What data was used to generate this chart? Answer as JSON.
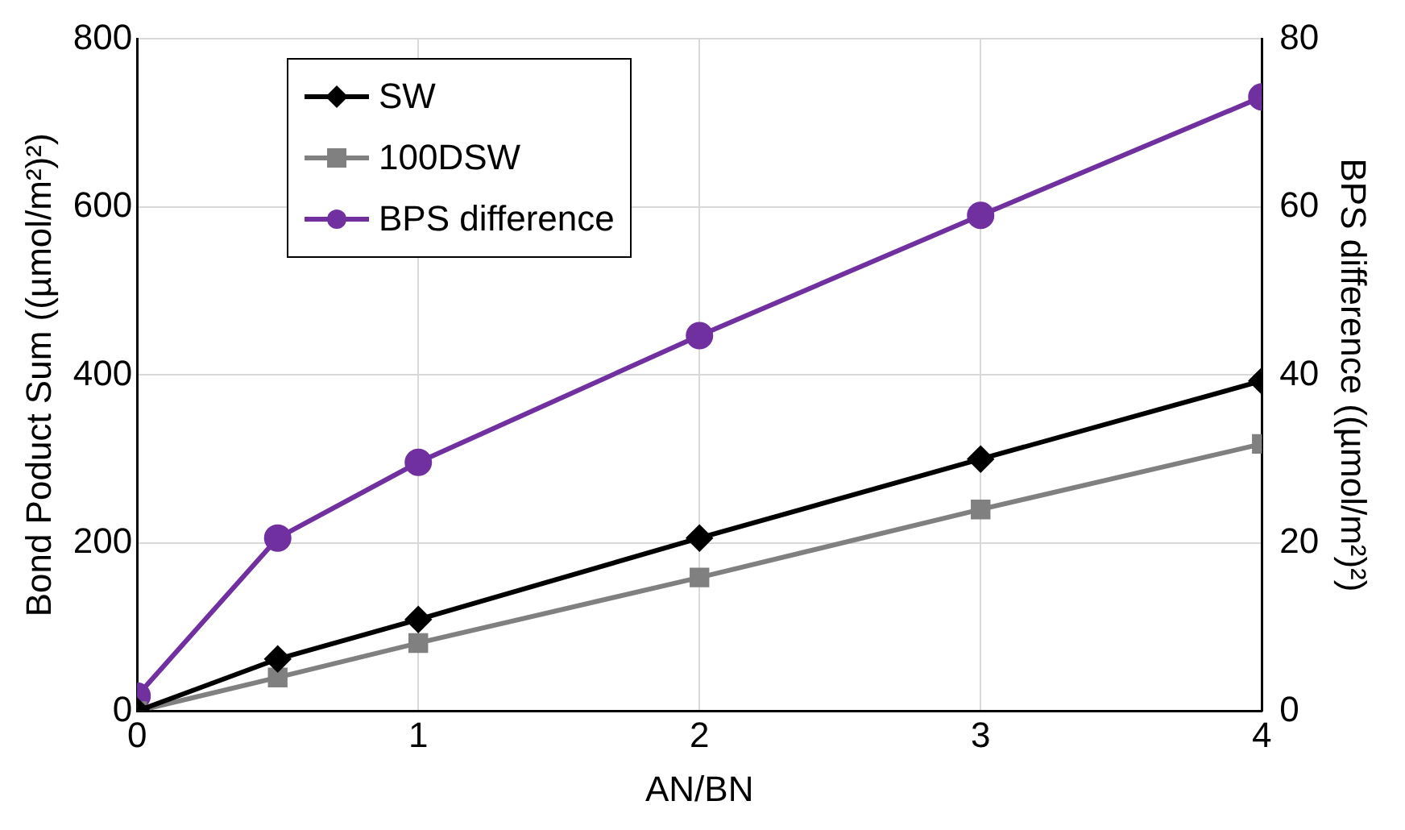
{
  "chart_data": {
    "type": "line",
    "xlabel": "AN/BN",
    "ylabel": "Bond Poduct Sum ((µmol/m²)²)",
    "y2label": "BPS difference ((µmol/m²)²)",
    "x": [
      0,
      0.5,
      1,
      2,
      3,
      4
    ],
    "xlim": [
      0,
      4
    ],
    "xticks": [
      0,
      1,
      2,
      3,
      4
    ],
    "ylim": [
      0,
      800
    ],
    "yticks": [
      0,
      200,
      400,
      600,
      800
    ],
    "y2lim": [
      0,
      80
    ],
    "y2ticks": [
      0,
      20,
      40,
      60,
      80
    ],
    "grid": true,
    "legend": "top left",
    "line_style": "solid",
    "series": [
      {
        "name": "SW",
        "color": "#000000",
        "marker": "diamond",
        "values": [
          0,
          62,
          109,
          206,
          300,
          393
        ]
      },
      {
        "name": "100DSW",
        "color": "#808080",
        "marker": "square",
        "values": [
          0,
          40,
          81,
          159,
          240,
          318
        ]
      },
      {
        "name": "BPS difference",
        "color": "#7030a0",
        "marker": "circle",
        "axis": "y2",
        "values": [
          1.8,
          20.6,
          29.6,
          44.7,
          59,
          73.1
        ]
      }
    ]
  }
}
